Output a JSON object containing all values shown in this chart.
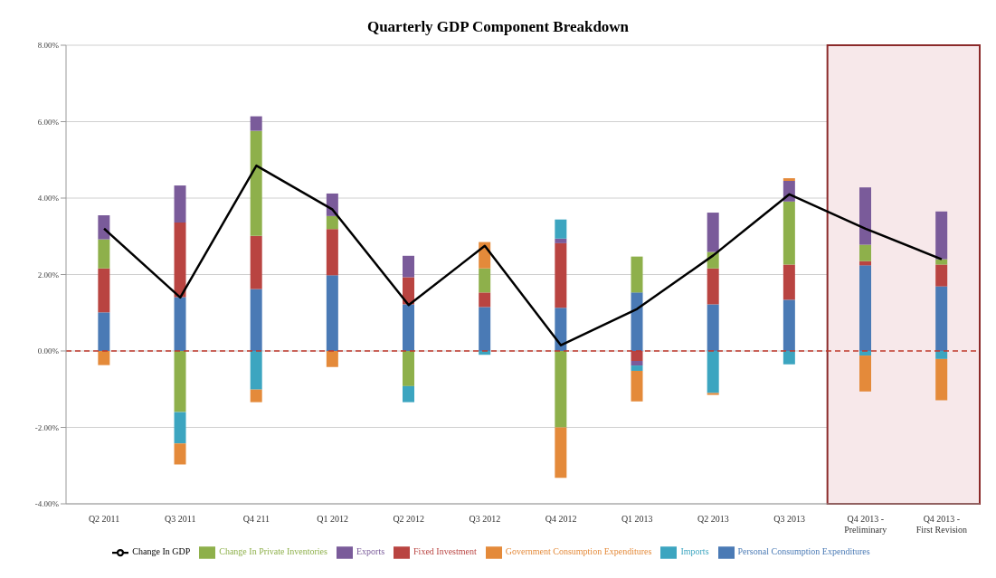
{
  "chart_data": {
    "type": "bar",
    "title": "Quarterly GDP Component Breakdown",
    "stacked": true,
    "categories": [
      "Q2 2011",
      "Q3 2011",
      "Q4 211",
      "Q1 2012",
      "Q2 2012",
      "Q3 2012",
      "Q4 2012",
      "Q1 2013",
      "Q2 2013",
      "Q3 2013",
      "Q4 2013 - Preliminary",
      "Q4 2013 - First Revision"
    ],
    "series": [
      {
        "name": "Personal Consumption Expenditures",
        "color": "#4a7ab5",
        "values": [
          1.01,
          1.41,
          1.62,
          1.98,
          1.22,
          1.15,
          1.13,
          1.53,
          1.22,
          1.34,
          2.24,
          1.69
        ]
      },
      {
        "name": "Fixed Investment",
        "color": "#b94441",
        "values": [
          1.15,
          1.95,
          1.39,
          1.21,
          0.71,
          0.38,
          1.69,
          -0.26,
          0.94,
          0.92,
          0.11,
          0.57
        ]
      },
      {
        "name": "Change In Private Inventories",
        "color": "#8eb04b",
        "values": [
          0.76,
          -1.6,
          2.75,
          0.34,
          -0.92,
          0.63,
          -2.0,
          0.94,
          0.43,
          1.65,
          0.43,
          0.14
        ]
      },
      {
        "name": "Exports",
        "color": "#7a5b9a",
        "values": [
          0.63,
          0.97,
          0.38,
          0.59,
          0.56,
          null,
          0.12,
          -0.12,
          1.03,
          0.54,
          1.5,
          1.25
        ]
      },
      {
        "name": "Imports",
        "color": "#3ca5c0",
        "values": [
          null,
          -0.82,
          -1.01,
          null,
          -0.42,
          -0.1,
          0.5,
          -0.14,
          -1.1,
          -0.35,
          -0.12,
          -0.21
        ]
      },
      {
        "name": "Government Consumption Expenditures",
        "color": "#e48a3a",
        "values": [
          -0.37,
          -0.55,
          -0.33,
          -0.42,
          null,
          0.69,
          -1.32,
          -0.8,
          -0.05,
          0.07,
          -0.94,
          -1.08
        ]
      },
      {
        "name": "Change In GDP",
        "type": "line",
        "color": "#000000",
        "values": [
          3.2,
          1.4,
          4.85,
          3.7,
          1.2,
          2.75,
          0.15,
          1.1,
          2.5,
          4.1,
          3.2,
          2.4
        ]
      }
    ],
    "ylim": [
      -4,
      8
    ],
    "yticks": [
      {
        "value": -4,
        "label": "-4.00%"
      },
      {
        "value": -2,
        "label": "-2.00%"
      },
      {
        "value": 0,
        "label": "0.00%"
      },
      {
        "value": 2,
        "label": "2.00%"
      },
      {
        "value": 4,
        "label": "4.00%"
      },
      {
        "value": 6,
        "label": "6.00%"
      },
      {
        "value": 8,
        "label": "8.00%"
      }
    ],
    "grid": "y",
    "legend": "bottom",
    "marker": "none",
    "line_style": "solid",
    "ref_lines": [
      {
        "axis": "y",
        "value": 0,
        "color": "#c0392b",
        "line_style": "dashed"
      }
    ],
    "bands": [
      {
        "axis": "x",
        "from": "Q4 2013 - Preliminary",
        "to": "Q4 2013 - First Revision",
        "color": "#f7e8ea"
      }
    ]
  }
}
